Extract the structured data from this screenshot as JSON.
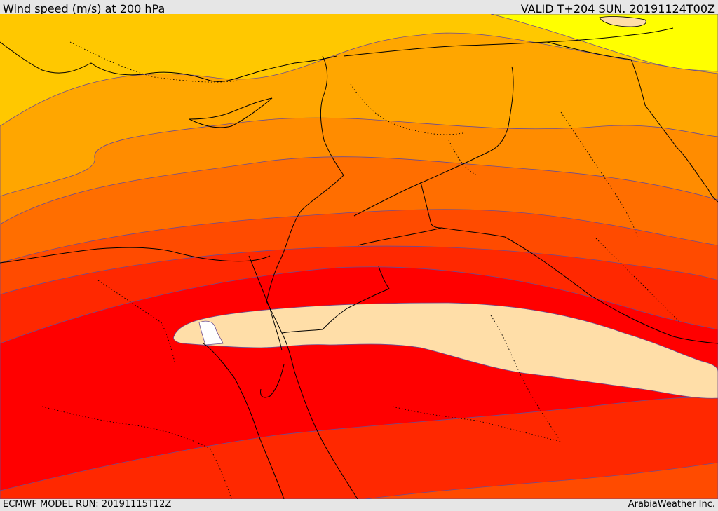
{
  "header": {
    "title": "Wind speed (m/s) at 200 hPa",
    "valid": "VALID T+204 SUN. 20191124T00Z"
  },
  "footer": {
    "model_run": "ECMWF MODEL RUN: 20191115T12Z",
    "credit": "ArabiaWeather Inc."
  },
  "map": {
    "variable": "wind-speed-200hpa",
    "palette": [
      "#ffff00",
      "#ffc800",
      "#ffa600",
      "#ff8c00",
      "#ff6e00",
      "#ff4b00",
      "#ff2800",
      "#ff0000",
      "#ffdea8",
      "#ffffff"
    ],
    "contour_color": "#6a4c93",
    "border_color": "#000000"
  }
}
